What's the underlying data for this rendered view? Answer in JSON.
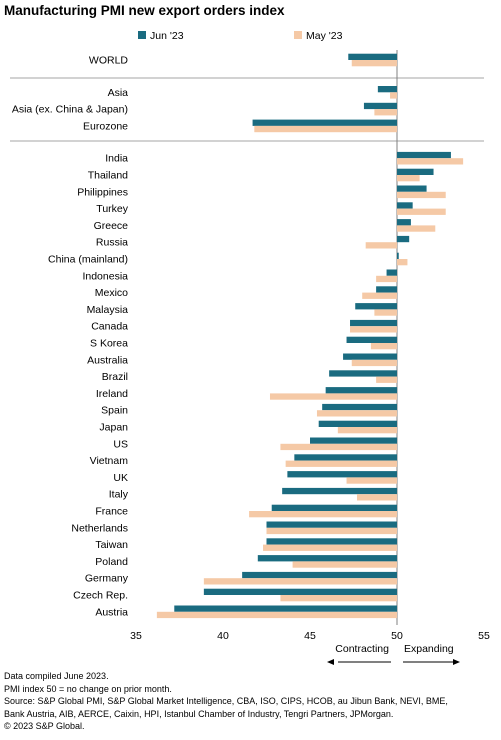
{
  "title": "Manufacturing PMI new export orders index",
  "chart_data": {
    "type": "bar",
    "orientation": "horizontal",
    "categories": [
      "WORLD",
      "Asia",
      "Asia (ex. China & Japan)",
      "Eurozone",
      "India",
      "Thailand",
      "Philippines",
      "Turkey",
      "Greece",
      "Russia",
      "China (mainland)",
      "Indonesia",
      "Mexico",
      "Malaysia",
      "Canada",
      "S Korea",
      "Australia",
      "Brazil",
      "Ireland",
      "Spain",
      "Japan",
      "US",
      "Vietnam",
      "UK",
      "Italy",
      "France",
      "Netherlands",
      "Taiwan",
      "Poland",
      "Germany",
      "Czech Rep.",
      "Austria"
    ],
    "series": [
      {
        "name": "Jun '23",
        "color": "#1a6b80",
        "values": [
          47.2,
          48.9,
          48.1,
          41.7,
          53.1,
          52.1,
          51.7,
          50.9,
          50.8,
          50.7,
          50.1,
          49.4,
          48.8,
          47.6,
          47.3,
          47.1,
          46.9,
          46.1,
          45.9,
          45.7,
          45.5,
          45.0,
          44.1,
          43.7,
          43.4,
          42.8,
          42.5,
          42.5,
          42.0,
          41.1,
          38.9,
          37.2
        ]
      },
      {
        "name": "May '23",
        "color": "#f5c9a6",
        "values": [
          47.4,
          49.6,
          48.7,
          41.8,
          53.8,
          51.3,
          52.8,
          52.8,
          52.2,
          48.2,
          50.6,
          48.8,
          48.0,
          48.7,
          47.3,
          48.5,
          47.4,
          48.8,
          42.7,
          45.4,
          46.6,
          43.3,
          43.6,
          47.1,
          47.7,
          41.5,
          42.5,
          42.3,
          44.0,
          38.9,
          43.3,
          36.2
        ]
      }
    ],
    "groups": [
      [
        "WORLD"
      ],
      [
        "Asia",
        "Asia (ex. China & Japan)",
        "Eurozone"
      ],
      [
        "India",
        "Thailand",
        "Philippines",
        "Turkey",
        "Greece",
        "Russia",
        "China (mainland)",
        "Indonesia",
        "Mexico",
        "Malaysia",
        "Canada",
        "S Korea",
        "Australia",
        "Brazil",
        "Ireland",
        "Spain",
        "Japan",
        "US",
        "Vietnam",
        "UK",
        "Italy",
        "France",
        "Netherlands",
        "Taiwan",
        "Poland",
        "Germany",
        "Czech Rep.",
        "Austria"
      ]
    ],
    "baseline": 50,
    "xlim": [
      35,
      55
    ],
    "xticks": [
      35,
      40,
      45,
      50,
      55
    ],
    "legend": "top",
    "grid": false,
    "annotations": {
      "left": "Contracting",
      "right": "Expanding"
    }
  },
  "notes": [
    "Data compiled June 2023.",
    "PMI index 50 = no change on prior month.",
    "Source: S&P Global PMI, S&P Global Market Intelligence, CBA, ISO, CIPS, HCOB, au Jibun Bank, NEVI, BME,",
    "Bank Austria, AIB, AERCE, Caixin, HPI, Istanbul Chamber of Industry, Tengri Partners, JPMorgan.",
    "© 2023 S&P Global."
  ]
}
